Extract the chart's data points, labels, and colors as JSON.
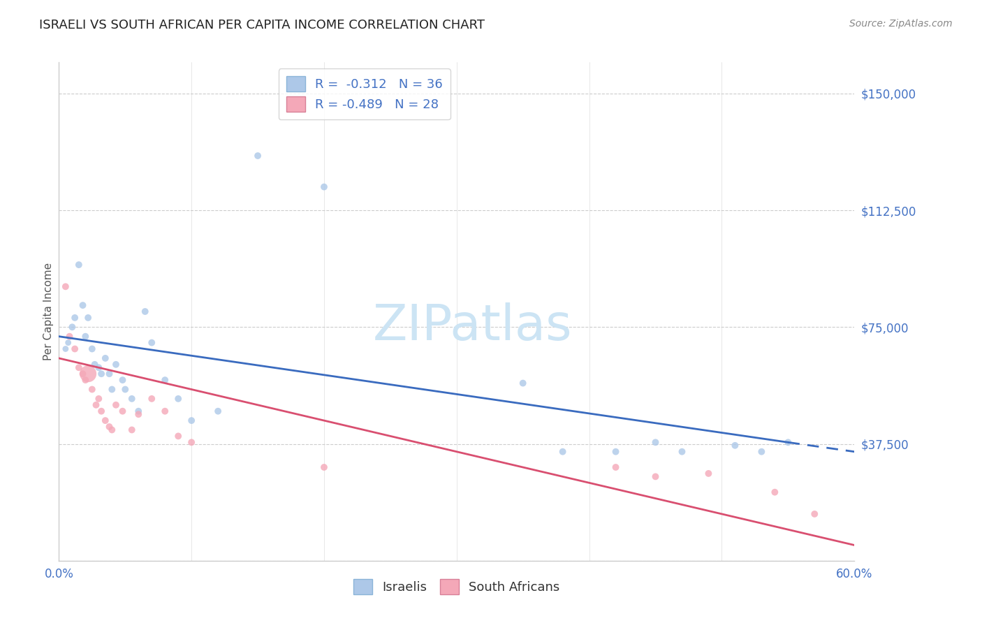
{
  "title": "ISRAELI VS SOUTH AFRICAN PER CAPITA INCOME CORRELATION CHART",
  "source": "Source: ZipAtlas.com",
  "ylabel": "Per Capita Income",
  "xlim": [
    0.0,
    0.6
  ],
  "ylim": [
    0,
    160000
  ],
  "yticks": [
    0,
    37500,
    75000,
    112500,
    150000
  ],
  "ytick_labels": [
    "",
    "$37,500",
    "$75,000",
    "$112,500",
    "$150,000"
  ],
  "xticks": [
    0.0,
    0.1,
    0.2,
    0.3,
    0.4,
    0.5,
    0.6
  ],
  "xtick_labels": [
    "0.0%",
    "",
    "",
    "",
    "",
    "",
    "60.0%"
  ],
  "legend_line1": "R =  -0.312   N = 36",
  "legend_line2": "R = -0.489   N = 28",
  "israeli_color": "#adc8e8",
  "sa_color": "#f4a8b8",
  "israeli_line_color": "#3a6bbf",
  "sa_line_color": "#d94f70",
  "watermark": "ZIPatlas",
  "watermark_color": "#cce4f4",
  "background_color": "#ffffff",
  "grid_color": "#cccccc",
  "tick_color": "#4472c4",
  "title_fontsize": 13,
  "israelis_x": [
    0.005,
    0.007,
    0.01,
    0.012,
    0.015,
    0.018,
    0.02,
    0.022,
    0.025,
    0.027,
    0.03,
    0.032,
    0.035,
    0.038,
    0.04,
    0.043,
    0.048,
    0.05,
    0.055,
    0.06,
    0.065,
    0.07,
    0.08,
    0.09,
    0.1,
    0.12,
    0.15,
    0.2,
    0.35,
    0.38,
    0.42,
    0.45,
    0.47,
    0.51,
    0.53,
    0.55
  ],
  "israelis_y": [
    68000,
    70000,
    75000,
    78000,
    95000,
    82000,
    72000,
    78000,
    68000,
    63000,
    62000,
    60000,
    65000,
    60000,
    55000,
    63000,
    58000,
    55000,
    52000,
    48000,
    80000,
    70000,
    58000,
    52000,
    45000,
    48000,
    130000,
    120000,
    57000,
    35000,
    35000,
    38000,
    35000,
    37000,
    35000,
    38000
  ],
  "israelis_size": [
    40,
    40,
    50,
    50,
    50,
    50,
    50,
    50,
    50,
    50,
    50,
    50,
    50,
    50,
    50,
    50,
    50,
    50,
    50,
    50,
    50,
    50,
    50,
    50,
    50,
    50,
    50,
    50,
    50,
    50,
    50,
    50,
    50,
    50,
    50,
    50
  ],
  "sa_x": [
    0.005,
    0.008,
    0.012,
    0.015,
    0.018,
    0.02,
    0.022,
    0.025,
    0.028,
    0.03,
    0.032,
    0.035,
    0.038,
    0.04,
    0.043,
    0.048,
    0.055,
    0.06,
    0.07,
    0.08,
    0.09,
    0.1,
    0.2,
    0.42,
    0.45,
    0.49,
    0.54,
    0.57
  ],
  "sa_y": [
    88000,
    72000,
    68000,
    62000,
    60000,
    58000,
    60000,
    55000,
    50000,
    52000,
    48000,
    45000,
    43000,
    42000,
    50000,
    48000,
    42000,
    47000,
    52000,
    48000,
    40000,
    38000,
    30000,
    30000,
    27000,
    28000,
    22000,
    15000
  ],
  "sa_size": [
    50,
    50,
    50,
    50,
    50,
    50,
    300,
    50,
    50,
    50,
    50,
    50,
    50,
    50,
    50,
    50,
    50,
    50,
    50,
    50,
    50,
    50,
    50,
    50,
    50,
    50,
    50,
    50
  ],
  "israeli_line_x0": 0.0,
  "israeli_line_y0": 72000,
  "israeli_line_x1": 0.55,
  "israeli_line_y1": 38000,
  "israeli_line_dashed_start": 0.55,
  "israeli_line_xend": 0.6,
  "israeli_line_yend": 35000,
  "sa_line_x0": 0.0,
  "sa_line_y0": 65000,
  "sa_line_x1": 0.6,
  "sa_line_y1": 5000
}
